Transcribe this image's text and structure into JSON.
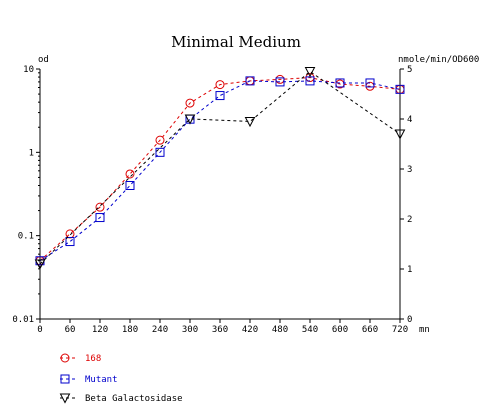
{
  "chart_data": {
    "type": "line",
    "title": "Minimal Medium",
    "xlabel": "mn",
    "ylabel_left": "od",
    "ylabel_right": "nmole/min/OD600",
    "x_ticks": [
      "0",
      "60",
      "120",
      "180",
      "240",
      "300",
      "360",
      "420",
      "480",
      "540",
      "600",
      "660",
      "720"
    ],
    "x_range": [
      0,
      720
    ],
    "y_left_scale": "log",
    "y_left_range": [
      0.01,
      10
    ],
    "y_left_ticks": [
      "0.01",
      "0.1",
      "1",
      "10"
    ],
    "y_right_range": [
      0,
      5
    ],
    "y_right_ticks": [
      "0",
      "1",
      "2",
      "3",
      "4",
      "5"
    ],
    "grid": false,
    "legend_position": "bottom-left",
    "series": [
      {
        "name": "168",
        "axis": "left",
        "marker": "circle",
        "color": "#dd0000",
        "x": [
          0,
          60,
          120,
          180,
          240,
          300,
          360,
          420,
          480,
          540,
          600,
          660,
          720
        ],
        "y": [
          0.05,
          0.105,
          0.22,
          0.55,
          1.4,
          3.9,
          6.5,
          7.2,
          7.5,
          7.9,
          6.6,
          6.2,
          5.7
        ]
      },
      {
        "name": "Mutant",
        "axis": "left",
        "marker": "square",
        "color": "#0000cc",
        "x": [
          0,
          60,
          120,
          180,
          240,
          300,
          360,
          420,
          480,
          540,
          600,
          660,
          720
        ],
        "y": [
          0.05,
          0.085,
          0.165,
          0.4,
          1.0,
          2.5,
          4.8,
          7.2,
          7.0,
          7.2,
          6.8,
          6.8,
          5.7
        ]
      },
      {
        "name": "Beta Galactosidase",
        "axis": "right",
        "marker": "triangle-down",
        "color": "#000000",
        "x": [
          0,
          300,
          420,
          540,
          720
        ],
        "y": [
          1.1,
          4.0,
          3.95,
          4.95,
          3.7
        ]
      }
    ]
  }
}
